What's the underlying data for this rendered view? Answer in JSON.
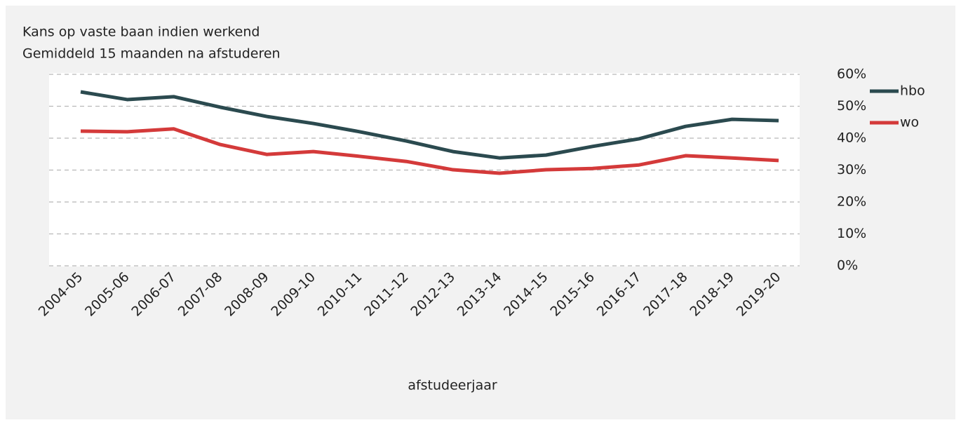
{
  "chart_data": {
    "type": "line",
    "title": "Kans op vaste baan indien werkend",
    "subtitle": "Gemiddeld 15 maanden na afstuderen",
    "x_label": "afstudeerjaar",
    "categories": [
      "2004-05",
      "2005-06",
      "2006-07",
      "2007-08",
      "2008-09",
      "2009-10",
      "2010-11",
      "2011-12",
      "2012-13",
      "2013-14",
      "2014-15",
      "2015-16",
      "2016-17",
      "2017-18",
      "2018-19",
      "2019-20"
    ],
    "series": [
      {
        "name": "hbo",
        "color": "#2b4a4f",
        "values": [
          54.5,
          52.1,
          53.0,
          49.7,
          46.8,
          44.6,
          42.0,
          39.1,
          35.8,
          33.8,
          34.7,
          37.4,
          39.8,
          43.7,
          45.9,
          45.5
        ]
      },
      {
        "name": "wo",
        "color": "#d43a3a",
        "values": [
          42.2,
          42.0,
          42.9,
          38.0,
          34.9,
          35.8,
          34.3,
          32.7,
          30.1,
          29.0,
          30.1,
          30.5,
          31.6,
          34.5,
          33.8,
          33.0
        ]
      }
    ],
    "ylim": [
      0,
      60
    ],
    "yticks": [
      {
        "value": 0,
        "label": "0%"
      },
      {
        "value": 10,
        "label": "10%"
      },
      {
        "value": 20,
        "label": "20%"
      },
      {
        "value": 30,
        "label": "30%"
      },
      {
        "value": 40,
        "label": "40%"
      },
      {
        "value": 50,
        "label": "50%"
      },
      {
        "value": 60,
        "label": "60%"
      }
    ],
    "grid": true,
    "legend": "right"
  }
}
